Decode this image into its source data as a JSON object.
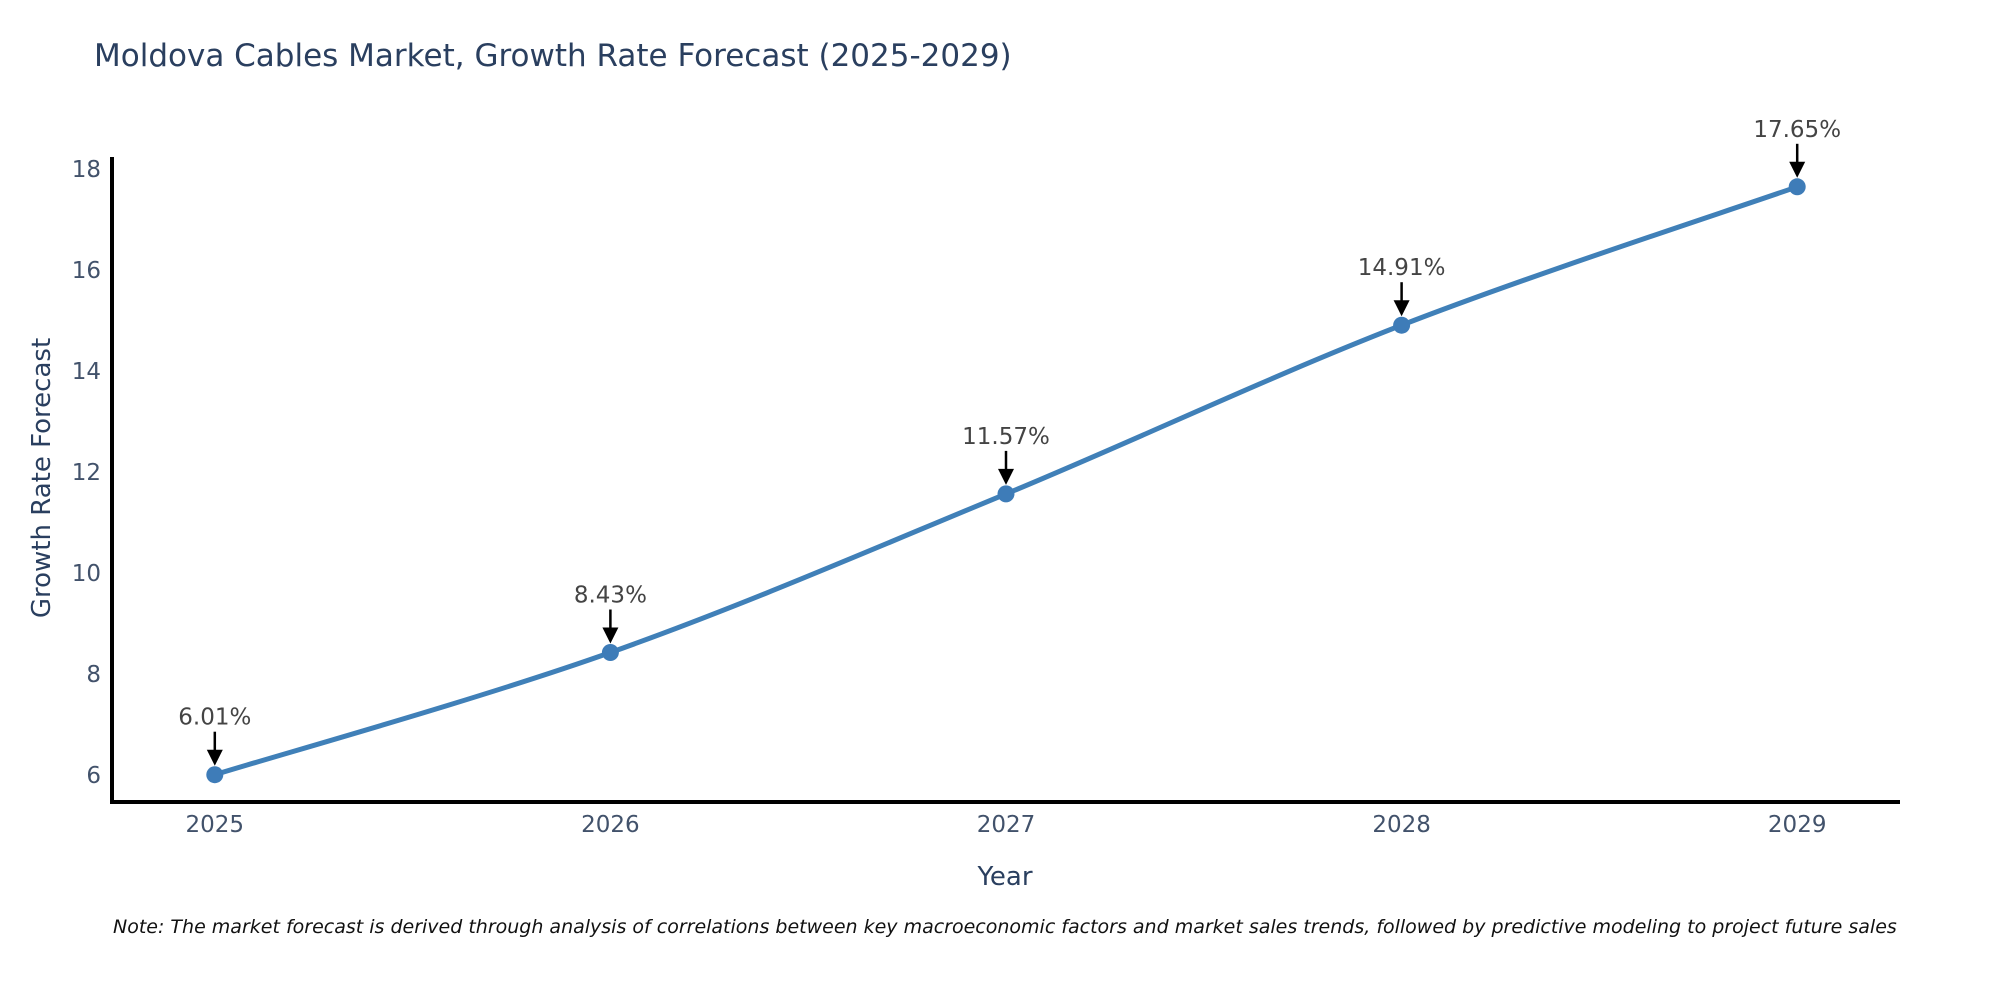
{
  "page": {
    "background": "#ffffff"
  },
  "chart_data": {
    "type": "line",
    "title": "Moldova Cables Market, Growth Rate Forecast (2025-2029)",
    "xlabel": "Year",
    "ylabel": "Growth Rate Forecast",
    "x": [
      2025,
      2026,
      2027,
      2028,
      2029
    ],
    "series": [
      {
        "name": "Growth Rate Forecast",
        "values": [
          6.01,
          8.43,
          11.57,
          14.91,
          17.65
        ]
      }
    ],
    "point_labels": [
      "6.01%",
      "8.43%",
      "11.57%",
      "14.91%",
      "17.65%"
    ],
    "x_tick_labels": [
      "2025",
      "2026",
      "2027",
      "2028",
      "2029"
    ],
    "y_ticks": [
      6,
      8,
      10,
      12,
      14,
      16,
      18
    ],
    "xlim": [
      2024.74,
      2029.26
    ],
    "ylim": [
      5.47,
      18.2
    ],
    "grid": false,
    "legend_position": "none",
    "line_shape": "spline",
    "colors": {
      "line": "#4080b8",
      "marker": "#3e7cb8",
      "axis_line": "#000000",
      "title_text": "#2a3f5f",
      "tick_text": "#42526b",
      "annotation_text": "#444444",
      "arrow": "#000000"
    }
  },
  "note": {
    "text": "Note: The market forecast is derived through analysis of correlations between key macroeconomic factors and market sales trends, followed by predictive modeling to project future sales"
  }
}
